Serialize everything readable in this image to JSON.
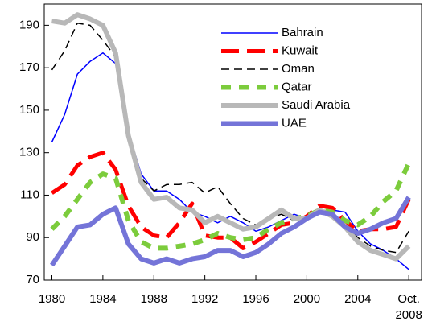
{
  "chart_data": {
    "type": "line",
    "x": [
      1980,
      1981,
      1982,
      1983,
      1984,
      1985,
      1986,
      1987,
      1988,
      1989,
      1990,
      1991,
      1992,
      1993,
      1994,
      1995,
      1996,
      1997,
      1998,
      1999,
      2000,
      2001,
      2002,
      2003,
      2004,
      2005,
      2006,
      2007,
      2008
    ],
    "series": [
      {
        "name": "Bahrain",
        "color": "#0000ff",
        "values": [
          135,
          148,
          167,
          173,
          177,
          172,
          140,
          120,
          112,
          112,
          108,
          102,
          100,
          97,
          100,
          97,
          93,
          95,
          98,
          101,
          99,
          102,
          103,
          102,
          93,
          87,
          84,
          80,
          75
        ]
      },
      {
        "name": "Kuwait",
        "color": "#ff0000",
        "values": [
          111,
          115,
          124,
          128,
          130,
          122,
          105,
          95,
          91,
          90,
          97,
          106,
          91,
          90,
          90,
          85,
          88,
          92,
          96,
          97,
          100,
          105,
          104,
          98,
          93,
          94,
          94,
          95,
          108
        ]
      },
      {
        "name": "Oman",
        "color": "#000000",
        "values": [
          169,
          178,
          191,
          190,
          183,
          175,
          140,
          118,
          112,
          115,
          115,
          116,
          111,
          114,
          106,
          99,
          96,
          99,
          101,
          98,
          100,
          104,
          101,
          96,
          90,
          86,
          84,
          83,
          93
        ]
      },
      {
        "name": "Qatar",
        "color": "#7ccc3c",
        "values": [
          94,
          100,
          108,
          116,
          120,
          118,
          98,
          88,
          85,
          85,
          86,
          87,
          89,
          92,
          90,
          89,
          90,
          94,
          97,
          99,
          100,
          103,
          102,
          98,
          96,
          100,
          107,
          112,
          125
        ]
      },
      {
        "name": "Saudi Arabia",
        "color": "#b8b8b8",
        "values": [
          192,
          191,
          195,
          193,
          190,
          177,
          138,
          116,
          108,
          109,
          104,
          103,
          97,
          100,
          97,
          94,
          95,
          99,
          103,
          99,
          99,
          103,
          100,
          95,
          88,
          84,
          82,
          80,
          86
        ]
      },
      {
        "name": "UAE",
        "color": "#7474d8",
        "values": [
          77,
          86,
          95,
          96,
          101,
          104,
          87,
          80,
          78,
          80,
          78,
          80,
          81,
          84,
          84,
          81,
          83,
          87,
          92,
          95,
          99,
          102,
          101,
          95,
          92,
          94,
          97,
          99,
          109
        ]
      }
    ],
    "xlim": [
      1979.4,
      2009.0
    ],
    "xticks": [
      1980,
      1984,
      1988,
      1992,
      1996,
      2000,
      2004,
      {
        "value": 2008,
        "label": "Oct. 2008"
      }
    ],
    "ylim": [
      70,
      200
    ],
    "yticks": [
      70,
      90,
      110,
      130,
      150,
      170,
      190
    ]
  }
}
